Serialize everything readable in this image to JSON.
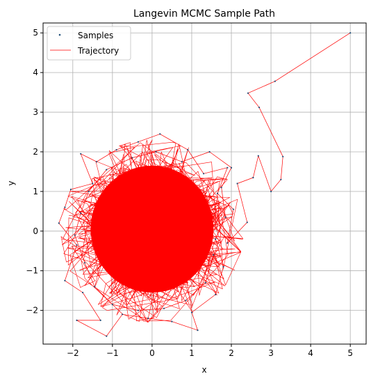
{
  "chart_data": {
    "type": "scatter",
    "title": "Langevin MCMC Sample Path",
    "xlabel": "x",
    "ylabel": "y",
    "xlim": [
      -2.75,
      5.4
    ],
    "ylim": [
      -2.85,
      5.25
    ],
    "xticks": [
      -2,
      -1,
      0,
      1,
      2,
      3,
      4,
      5
    ],
    "yticks": [
      -2,
      -1,
      0,
      1,
      2,
      3,
      4,
      5
    ],
    "xtick_labels": [
      "−2",
      "−1",
      "0",
      "1",
      "2",
      "3",
      "4",
      "5"
    ],
    "ytick_labels": [
      "−2",
      "−1",
      "0",
      "1",
      "2",
      "3",
      "4",
      "5"
    ],
    "grid": true,
    "legend_position": "top-left",
    "samples_color": "#1f4e79",
    "trajectory_color": "#ff0000",
    "series": [
      {
        "name": "Samples",
        "kind": "scatter"
      },
      {
        "name": "Trajectory",
        "kind": "line",
        "points": [
          [
            5.0,
            5.0
          ],
          [
            3.1,
            3.78
          ],
          [
            2.42,
            3.48
          ],
          [
            2.7,
            3.12
          ],
          [
            3.3,
            1.88
          ],
          [
            3.25,
            1.3
          ],
          [
            3.0,
            1.0
          ],
          [
            2.68,
            1.9
          ],
          [
            2.55,
            1.35
          ],
          [
            2.15,
            1.2
          ],
          [
            2.4,
            0.22
          ],
          [
            1.9,
            -0.3
          ],
          [
            2.05,
            0.55
          ],
          [
            1.65,
            0.95
          ],
          [
            1.9,
            1.6
          ],
          [
            1.3,
            1.45
          ],
          [
            0.9,
            2.05
          ],
          [
            0.2,
            2.45
          ],
          [
            -0.35,
            2.25
          ],
          [
            -0.9,
            2.05
          ],
          [
            -1.4,
            1.75
          ],
          [
            -1.8,
            1.95
          ],
          [
            -1.5,
            1.2
          ],
          [
            -2.05,
            1.05
          ],
          [
            -2.2,
            0.6
          ],
          [
            -2.35,
            0.2
          ],
          [
            -1.9,
            -0.35
          ],
          [
            -2.2,
            -1.25
          ],
          [
            -1.75,
            -1.55
          ],
          [
            -1.3,
            -2.25
          ],
          [
            -1.9,
            -2.25
          ],
          [
            -1.15,
            -2.65
          ],
          [
            -0.75,
            -2.1
          ],
          [
            -0.1,
            -2.2
          ],
          [
            0.5,
            -2.28
          ],
          [
            1.15,
            -2.5
          ],
          [
            1.0,
            -2.05
          ],
          [
            1.6,
            -1.6
          ],
          [
            1.8,
            -0.9
          ],
          [
            1.6,
            -0.2
          ],
          [
            1.85,
            0.35
          ],
          [
            1.75,
            1.1
          ],
          [
            2.0,
            1.6
          ],
          [
            1.45,
            2.0
          ],
          [
            0.75,
            1.75
          ],
          [
            0.1,
            2.0
          ],
          [
            -0.5,
            1.85
          ],
          [
            -1.15,
            1.55
          ],
          [
            -1.6,
            1.0
          ],
          [
            -1.8,
            0.45
          ],
          [
            -1.95,
            -0.1
          ],
          [
            -1.7,
            -0.8
          ],
          [
            -1.45,
            -1.4
          ],
          [
            -1.0,
            -1.85
          ],
          [
            -0.35,
            -2.0
          ],
          [
            0.3,
            -1.95
          ],
          [
            0.85,
            -1.75
          ],
          [
            1.35,
            -1.3
          ],
          [
            1.55,
            -0.6
          ]
        ]
      }
    ]
  }
}
